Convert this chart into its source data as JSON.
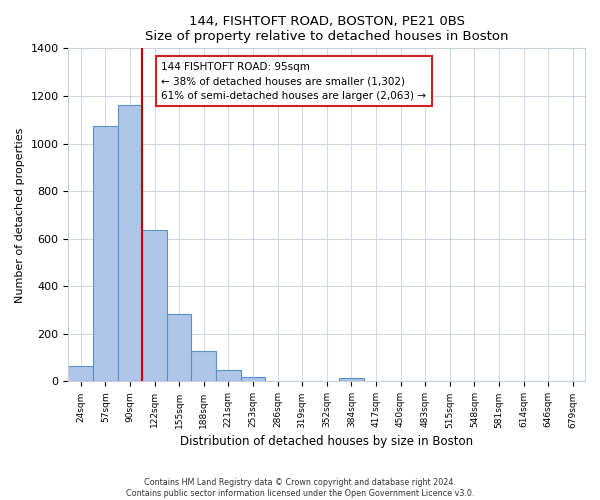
{
  "title": "144, FISHTOFT ROAD, BOSTON, PE21 0BS",
  "subtitle": "Size of property relative to detached houses in Boston",
  "xlabel": "Distribution of detached houses by size in Boston",
  "ylabel": "Number of detached properties",
  "bar_labels": [
    "24sqm",
    "57sqm",
    "90sqm",
    "122sqm",
    "155sqm",
    "188sqm",
    "221sqm",
    "253sqm",
    "286sqm",
    "319sqm",
    "352sqm",
    "384sqm",
    "417sqm",
    "450sqm",
    "483sqm",
    "515sqm",
    "548sqm",
    "581sqm",
    "614sqm",
    "646sqm",
    "679sqm"
  ],
  "bar_values": [
    65,
    1075,
    1160,
    635,
    285,
    130,
    48,
    20,
    0,
    0,
    0,
    15,
    0,
    0,
    0,
    0,
    0,
    0,
    0,
    0,
    0
  ],
  "bar_color": "#aec6e8",
  "bar_edge_color": "#5b8fc9",
  "ylim": [
    0,
    1400
  ],
  "yticks": [
    0,
    200,
    400,
    600,
    800,
    1000,
    1200,
    1400
  ],
  "property_line_color": "#cc0000",
  "annotation_title": "144 FISHTOFT ROAD: 95sqm",
  "annotation_line1": "← 38% of detached houses are smaller (1,302)",
  "annotation_line2": "61% of semi-detached houses are larger (2,063) →",
  "footer_line1": "Contains HM Land Registry data © Crown copyright and database right 2024.",
  "footer_line2": "Contains public sector information licensed under the Open Government Licence v3.0.",
  "background_color": "#ffffff",
  "grid_color": "#c8d0dc"
}
